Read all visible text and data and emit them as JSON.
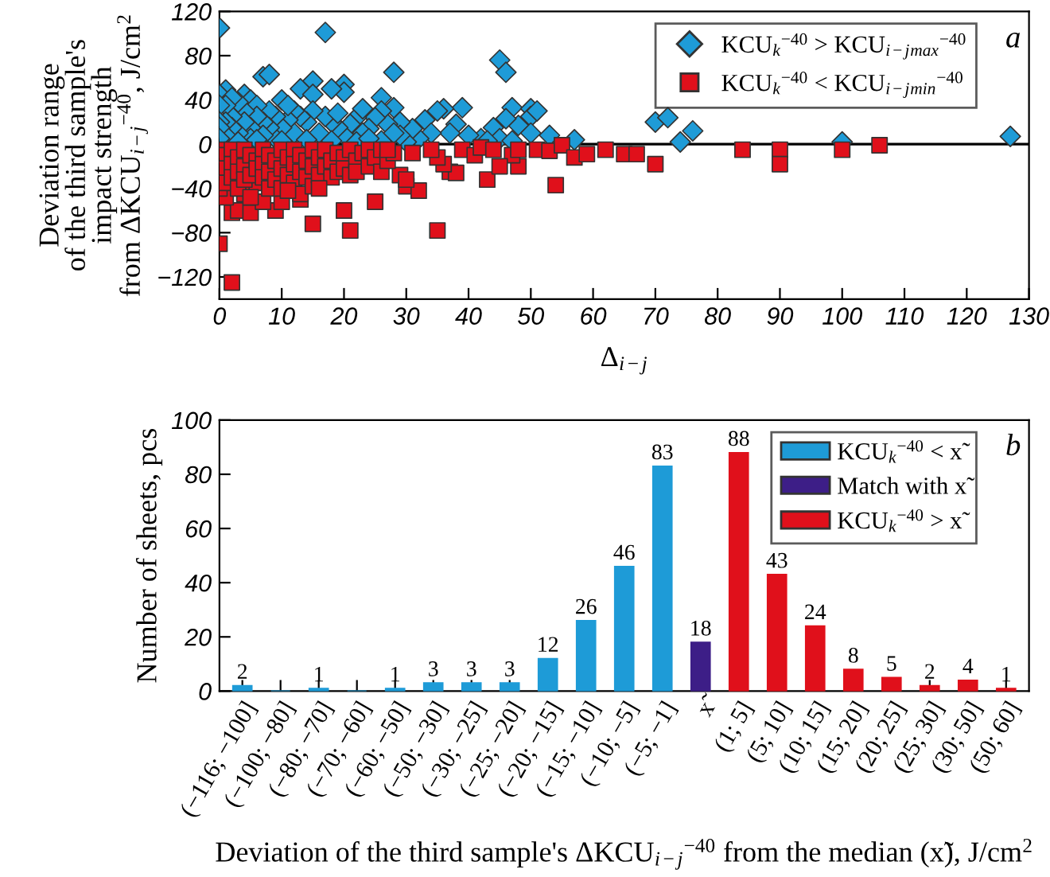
{
  "chart_data": [
    {
      "type": "scatter",
      "xlabel": "Δ$_{i−j}$",
      "ylabel": "Deviation range\nof the third sample's\nimpact strength\nfrom ΔKCU$_{i−j}$$^{−40}$, J/cm$^{2}$",
      "xlim": [
        0,
        130
      ],
      "xticks": [
        0,
        10,
        20,
        30,
        40,
        50,
        60,
        70,
        80,
        90,
        100,
        110,
        120,
        130
      ],
      "ylim": [
        -140,
        120
      ],
      "yticks": [
        -120,
        -80,
        -40,
        0,
        40,
        80,
        120
      ],
      "legend": "top right",
      "annotations": [
        "a"
      ],
      "grid": false,
      "ref_lines": [
        {
          "axis": "y",
          "value": 0,
          "color": "#000000",
          "line_style": "solid"
        }
      ],
      "series": [
        {
          "name": "KCU$_{k}$$^{−40}$ > KCU$_{i−j}$$_{max}$$^{−40}$",
          "color": "#1e9bd7",
          "marker": "diamond",
          "x": [
            0,
            17,
            7,
            8,
            28,
            45,
            46,
            15,
            20,
            20,
            13,
            18,
            10,
            1,
            0,
            4,
            5,
            39,
            47,
            50,
            50,
            51,
            48,
            50,
            53,
            57,
            70,
            72,
            74,
            76,
            100,
            127,
            44,
            45,
            46,
            47,
            42,
            38,
            37,
            36,
            35,
            33,
            34,
            32,
            31,
            29,
            28,
            27,
            26,
            26,
            25,
            24,
            23,
            22,
            21,
            20,
            19,
            18,
            17,
            16,
            15,
            15,
            14,
            13,
            12,
            12,
            11,
            11,
            10,
            9,
            9,
            8,
            8,
            7,
            7,
            6,
            6,
            5,
            5,
            4,
            4,
            3,
            3,
            2,
            2,
            2,
            1,
            1,
            1,
            0,
            0,
            0,
            0,
            3,
            6,
            10,
            14,
            18,
            22,
            26,
            30,
            40,
            43,
            23,
            19,
            24,
            29,
            28
          ],
          "values": [
            105,
            101,
            61,
            63,
            65,
            76,
            65,
            57,
            54,
            47,
            50,
            50,
            40,
            49,
            45,
            45,
            40,
            33,
            33,
            32,
            25,
            30,
            17,
            10,
            8,
            4,
            20,
            24,
            2,
            12,
            2,
            7,
            15,
            5,
            23,
            3,
            5,
            18,
            10,
            32,
            30,
            22,
            10,
            5,
            14,
            20,
            33,
            18,
            42,
            30,
            24,
            14,
            10,
            24,
            18,
            8,
            15,
            20,
            25,
            10,
            45,
            30,
            20,
            25,
            10,
            30,
            22,
            35,
            15,
            25,
            5,
            30,
            15,
            20,
            8,
            35,
            25,
            15,
            5,
            30,
            20,
            38,
            10,
            42,
            25,
            15,
            35,
            20,
            8,
            35,
            20,
            15,
            5,
            2,
            4,
            3,
            4,
            3,
            2,
            3,
            2,
            8,
            3,
            32,
            28,
            5,
            8,
            10
          ]
        },
        {
          "name": "KCU$_{k}$$^{−40}$ < KCU$_{i−j}$$_{min}$$^{−40}$",
          "color": "#e0101b",
          "marker": "square",
          "x": [
            0,
            2,
            2,
            3,
            5,
            9,
            15,
            20,
            21,
            35,
            25,
            13,
            7,
            10,
            1,
            0,
            4,
            6,
            30,
            32,
            29,
            30,
            37,
            38,
            43,
            48,
            36,
            35,
            34,
            31,
            39,
            41,
            42,
            44,
            47,
            51,
            53,
            54,
            55,
            57,
            59,
            62,
            65,
            67,
            70,
            84,
            90,
            90,
            100,
            106,
            45,
            48,
            0,
            1,
            1,
            1,
            2,
            2,
            2,
            3,
            3,
            3,
            4,
            4,
            4,
            5,
            5,
            5,
            6,
            6,
            7,
            7,
            7,
            8,
            8,
            8,
            9,
            9,
            10,
            10,
            10,
            11,
            11,
            12,
            12,
            12,
            13,
            13,
            13,
            14,
            14,
            15,
            15,
            15,
            16,
            16,
            17,
            17,
            18,
            18,
            19,
            19,
            20,
            20,
            21,
            21,
            22,
            22,
            23,
            24,
            24,
            25,
            26,
            26,
            27,
            28,
            27,
            16,
            11
          ],
          "values": [
            -90,
            -125,
            -62,
            -60,
            -62,
            -60,
            -72,
            -60,
            -78,
            -78,
            -52,
            -50,
            -52,
            -52,
            -48,
            -40,
            -45,
            -35,
            -38,
            -42,
            -28,
            -32,
            -25,
            -26,
            -32,
            -20,
            -18,
            -12,
            -5,
            -8,
            -5,
            -10,
            -3,
            -5,
            -10,
            -5,
            -6,
            -37,
            -1,
            -12,
            -9,
            -5,
            -9,
            -9,
            -18,
            -5,
            -5,
            -18,
            -5,
            -1,
            -20,
            -5,
            -5,
            -10,
            -22,
            -35,
            -5,
            -18,
            -30,
            -12,
            -25,
            -40,
            -5,
            -20,
            -32,
            -10,
            -28,
            -48,
            -15,
            -22,
            -5,
            -18,
            -30,
            -10,
            -25,
            -40,
            -15,
            -32,
            -5,
            -22,
            -40,
            -12,
            -28,
            -5,
            -18,
            -35,
            -10,
            -25,
            -45,
            -15,
            -30,
            -5,
            -20,
            -38,
            -12,
            -28,
            -5,
            -20,
            -15,
            -30,
            -8,
            -25,
            -12,
            -22,
            -5,
            -28,
            -15,
            -25,
            -8,
            -20,
            -5,
            -12,
            -25,
            -5,
            -15,
            -8,
            -5,
            -40,
            -42
          ]
        }
      ]
    },
    {
      "type": "bar",
      "ylabel": "Number of sheets, pcs",
      "xlabel": "Deviation of the third sample's ΔKCU$_{i−j}$$^{−40}$ from the median (x̃), J/cm$^{2}$",
      "categories": [
        "(−116; −100]",
        "(−100; −80]",
        "(−80; −70]",
        "(−70; −60]",
        "(−60; −50]",
        "(−50; −30]",
        "(−30; −25]",
        "(−25; −20]",
        "(−20; −15]",
        "(−15; −10]",
        "(−10; −5]",
        "(−5; −1]",
        "x̃",
        "(1; 5]",
        "(5; 10]",
        "(10; 15]",
        "(15; 20]",
        "(20; 25]",
        "(25; 30]",
        "(30; 50]",
        "(50; 60]"
      ],
      "ylim": [
        0,
        100
      ],
      "yticks": [
        0,
        20,
        40,
        60,
        80,
        100
      ],
      "legend": "top right",
      "annotations": [
        "b"
      ],
      "grid": false,
      "series": [
        {
          "name": "KCU$_{k}$$^{−40}$ < x̃",
          "color": "#1e9bd7",
          "values": [
            2,
            0,
            1,
            0,
            1,
            3,
            3,
            3,
            12,
            26,
            46,
            83,
            null,
            null,
            null,
            null,
            null,
            null,
            null,
            null,
            null
          ],
          "value_labels": [
            "2",
            null,
            "1",
            null,
            "1",
            "3",
            "3",
            "3",
            "12",
            "26",
            "46",
            "83",
            null,
            null,
            null,
            null,
            null,
            null,
            null,
            null,
            null
          ]
        },
        {
          "name": "Match with x̃",
          "color": "#3d1e87",
          "values": [
            null,
            null,
            null,
            null,
            null,
            null,
            null,
            null,
            null,
            null,
            null,
            null,
            18,
            null,
            null,
            null,
            null,
            null,
            null,
            null,
            null
          ],
          "value_labels": [
            null,
            null,
            null,
            null,
            null,
            null,
            null,
            null,
            null,
            null,
            null,
            null,
            "18",
            null,
            null,
            null,
            null,
            null,
            null,
            null,
            null
          ]
        },
        {
          "name": "KCU$_{k}$$^{−40}$ > x̃",
          "color": "#e0101b",
          "values": [
            null,
            null,
            null,
            null,
            null,
            null,
            null,
            null,
            null,
            null,
            null,
            null,
            null,
            88,
            43,
            24,
            8,
            5,
            2,
            4,
            1
          ],
          "value_labels": [
            null,
            null,
            null,
            null,
            null,
            null,
            null,
            null,
            null,
            null,
            null,
            null,
            null,
            "88",
            "43",
            "24",
            "8",
            "5",
            "2",
            "4",
            "1"
          ]
        }
      ]
    }
  ]
}
